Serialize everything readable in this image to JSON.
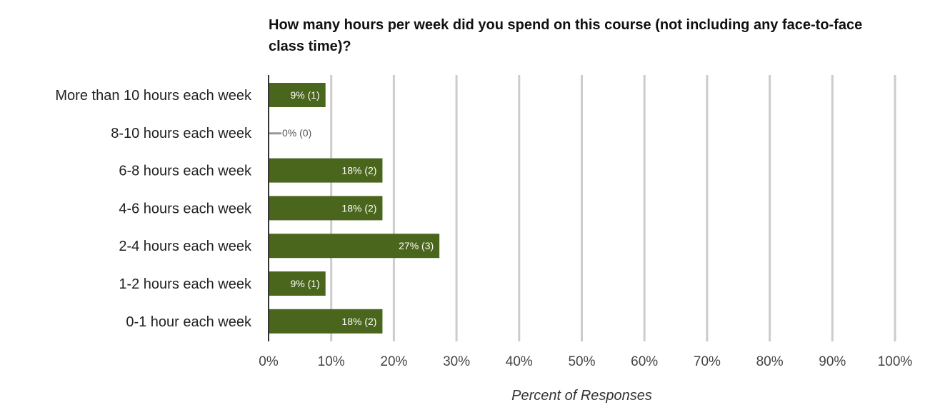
{
  "chart_data": {
    "type": "bar",
    "orientation": "horizontal",
    "title": "How many hours per week did you spend on this course (not including any face-to-face class time)?",
    "xlabel": "Percent of Responses",
    "ylabel": "",
    "xlim": [
      0,
      100
    ],
    "x_ticks": [
      "0%",
      "10%",
      "20%",
      "30%",
      "40%",
      "50%",
      "60%",
      "70%",
      "80%",
      "90%",
      "100%"
    ],
    "grid": true,
    "categories": [
      "More than 10 hours each week",
      "8-10 hours each week",
      "6-8 hours each week",
      "4-6 hours each week",
      "2-4 hours each week",
      "1-2 hours each week",
      "0-1 hour each week"
    ],
    "values": [
      9.09,
      0,
      18.18,
      18.18,
      27.27,
      9.09,
      18.18
    ],
    "counts": [
      1,
      0,
      2,
      2,
      3,
      1,
      2
    ],
    "data_labels": [
      "9% (1)",
      "0% (0)",
      "18% (2)",
      "18% (2)",
      "27% (3)",
      "9% (1)",
      "18% (2)"
    ],
    "colors": {
      "bar": "#4a661d",
      "grid": "#cccccc",
      "axis": "#333333",
      "zero_marker": "#999999"
    }
  }
}
